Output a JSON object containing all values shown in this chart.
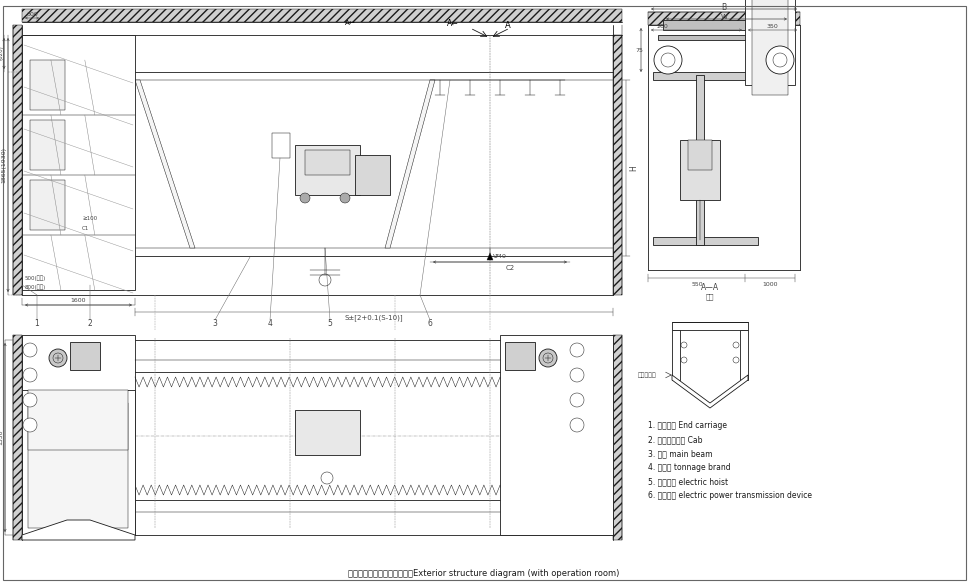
{
  "title": "外形结构图（安装有司机室）Exterior structure diagram (with operation room)",
  "legend_items": [
    "1. 端梁装置 End carriage",
    "2. 封闭式司机室 Cab",
    "3. 主梁 main beam",
    "4. 吨位牌 tonnage brand",
    "5. 电动葫芦 electric hoist",
    "6. 输电装置 electric power transmission device"
  ],
  "section_label_line1": "A—A",
  "section_label_line2": "放大",
  "screw_text": "螺旋在外面",
  "bg_color": "#ffffff",
  "line_color": "#1a1a1a",
  "dim_color": "#444444",
  "gray_fill": "#cccccc",
  "light_gray": "#e8e8e8"
}
